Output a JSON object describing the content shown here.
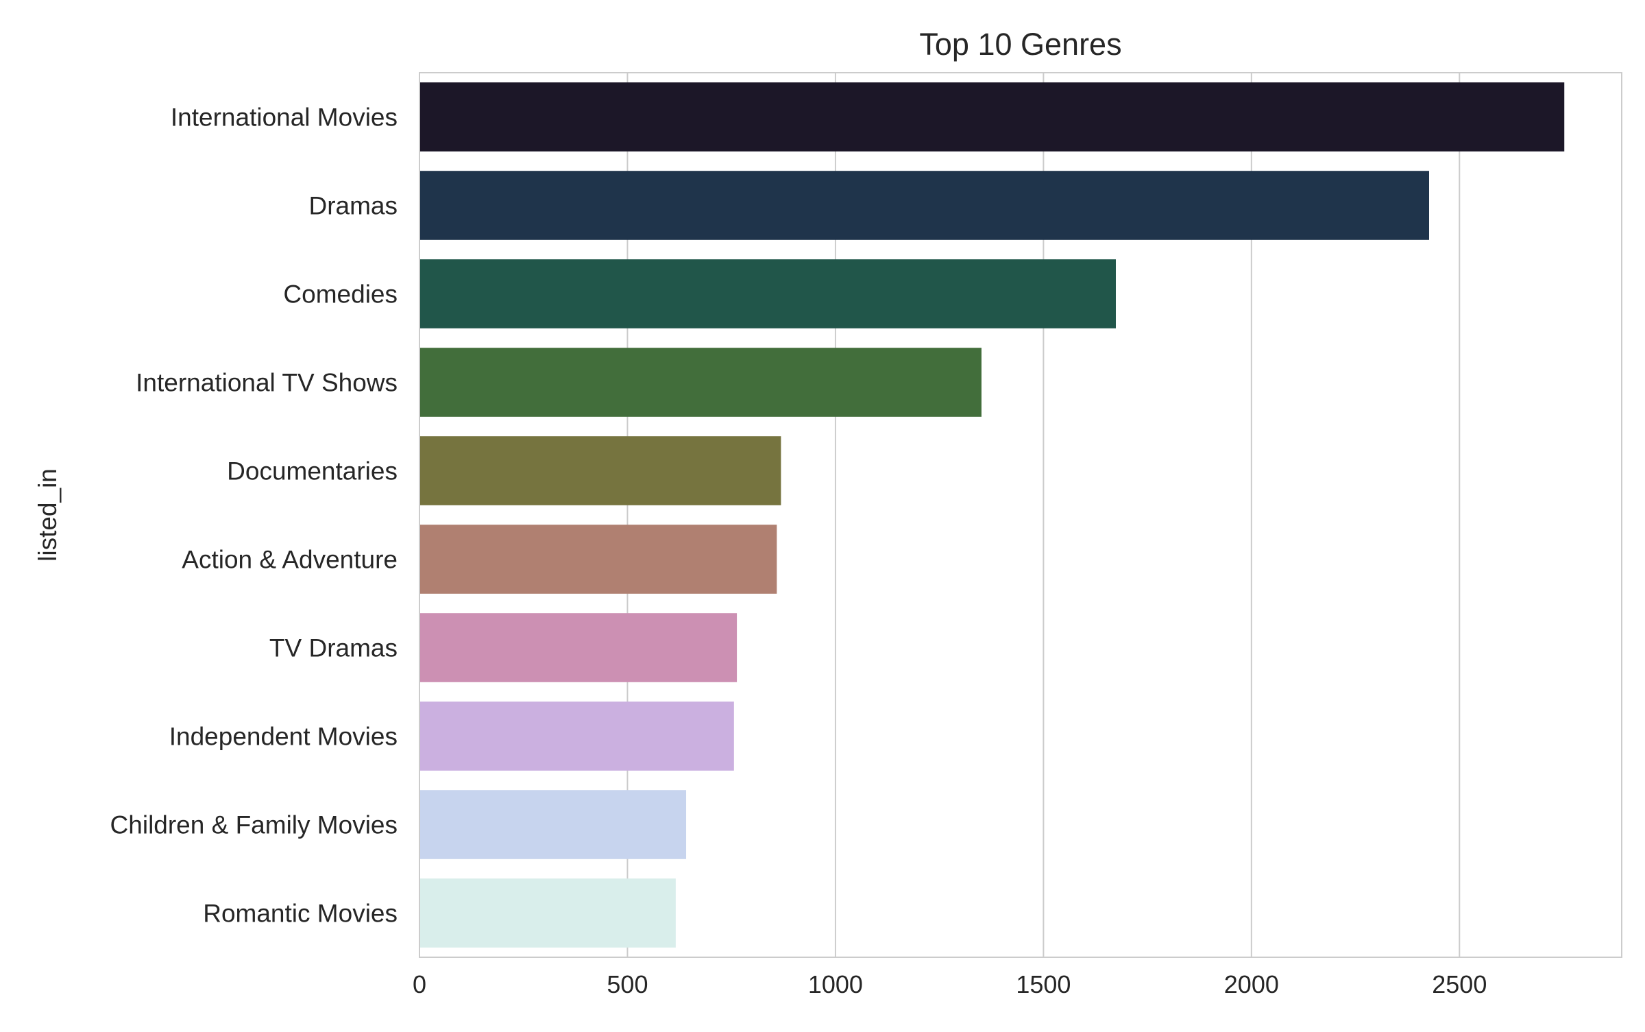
{
  "chart_data": {
    "type": "bar",
    "orientation": "horizontal",
    "title": "Top 10 Genres",
    "xlabel": "",
    "ylabel": "listed_in",
    "categories": [
      "International Movies",
      "Dramas",
      "Comedies",
      "International TV Shows",
      "Documentaries",
      "Action & Adventure",
      "TV Dramas",
      "Independent Movies",
      "Children & Family Movies",
      "Romantic Movies"
    ],
    "values": [
      2752,
      2427,
      1674,
      1351,
      869,
      859,
      763,
      756,
      641,
      616
    ],
    "colors": [
      "#1c1728",
      "#1f344b",
      "#21564a",
      "#426e3b",
      "#76743f",
      "#b08071",
      "#cc90b3",
      "#cbb0e0",
      "#c7d4ee",
      "#d9eeeb"
    ],
    "xlim": [
      0,
      2890
    ],
    "xticks": [
      0,
      500,
      1000,
      1500,
      2000,
      2500
    ],
    "grid": "vertical",
    "legend": "none"
  }
}
